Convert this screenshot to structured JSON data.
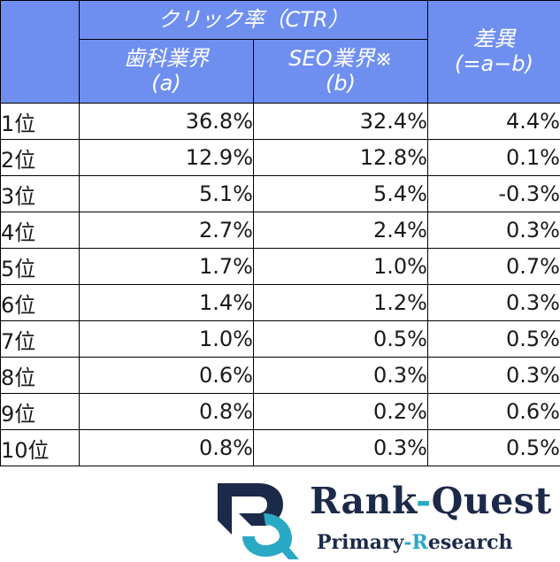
{
  "table": {
    "header": {
      "group_title": "クリック率（CTR）",
      "col_a": {
        "line1": "歯科業界",
        "line2": "(a)"
      },
      "col_b": {
        "line1": "SEO業界※",
        "line2": "(b)"
      },
      "col_diff": {
        "line1": "差異",
        "line2": "(=a−b)"
      }
    },
    "rows": [
      {
        "rank": "1位",
        "a": "36.8%",
        "b": "32.4%",
        "diff": "4.4%"
      },
      {
        "rank": "2位",
        "a": "12.9%",
        "b": "12.8%",
        "diff": "0.1%"
      },
      {
        "rank": "3位",
        "a": "5.1%",
        "b": "5.4%",
        "diff": "-0.3%"
      },
      {
        "rank": "4位",
        "a": "2.7%",
        "b": "2.4%",
        "diff": "0.3%"
      },
      {
        "rank": "5位",
        "a": "1.7%",
        "b": "1.0%",
        "diff": "0.7%"
      },
      {
        "rank": "6位",
        "a": "1.4%",
        "b": "1.2%",
        "diff": "0.3%"
      },
      {
        "rank": "7位",
        "a": "1.0%",
        "b": "0.5%",
        "diff": "0.5%"
      },
      {
        "rank": "8位",
        "a": "0.6%",
        "b": "0.3%",
        "diff": "0.3%"
      },
      {
        "rank": "9位",
        "a": "0.8%",
        "b": "0.2%",
        "diff": "0.6%"
      },
      {
        "rank": "10位",
        "a": "0.8%",
        "b": "0.3%",
        "diff": "0.5%"
      }
    ]
  },
  "logo": {
    "icon": "rank-quest-rq-logo-icon",
    "title_part1": "Rank",
    "title_hyphen": "-",
    "title_part2": "Quest",
    "subtitle_part1": "Primary",
    "subtitle_hyphen": "-",
    "subtitle_accent": "R",
    "subtitle_part2": "esearch"
  },
  "colors": {
    "header_bg": "#6f8ff0",
    "header_text": "#ffffff",
    "logo_navy": "#1c2a49",
    "logo_teal": "#2aa9c4"
  }
}
